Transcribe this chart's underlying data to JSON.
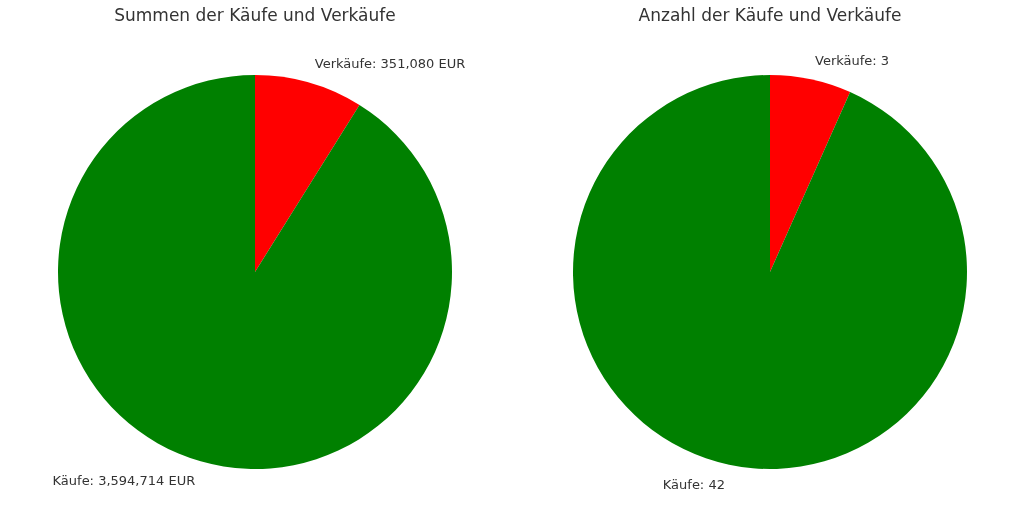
{
  "chart_data": [
    {
      "type": "pie",
      "title": "Summen der Käufe und Verkäufe",
      "categories": [
        "Verkäufe",
        "Käufe"
      ],
      "values": [
        351080,
        3594714
      ],
      "value_labels": [
        "351,080 EUR",
        "3,594,714 EUR"
      ],
      "colors": [
        "#ff0000",
        "#008000"
      ]
    },
    {
      "type": "pie",
      "title": "Anzahl der Käufe und Verkäufe",
      "categories": [
        "Verkäufe",
        "Käufe"
      ],
      "values": [
        3,
        42
      ],
      "value_labels": [
        "3",
        "42"
      ],
      "colors": [
        "#ff0000",
        "#008000"
      ]
    }
  ]
}
